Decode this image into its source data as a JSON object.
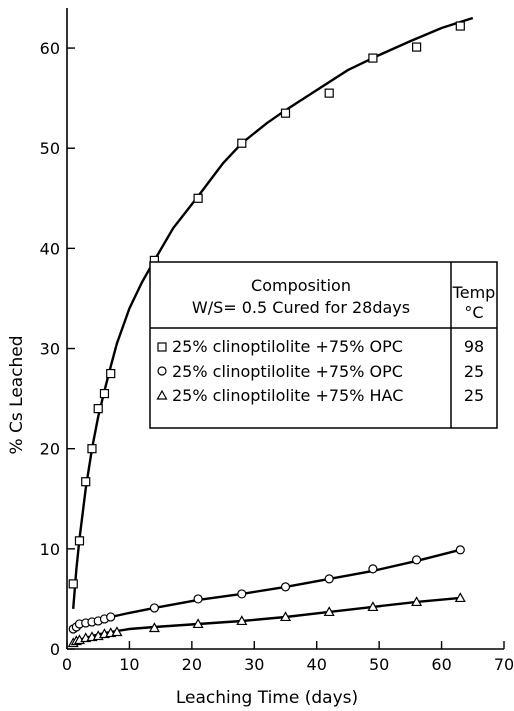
{
  "chart_data": {
    "type": "scatter",
    "xlabel": "Leaching Time (days)",
    "ylabel": "% Cs Leached",
    "xlim": [
      0,
      70
    ],
    "ylim": [
      0,
      64
    ],
    "xticks": [
      0,
      10,
      20,
      30,
      40,
      50,
      60,
      70
    ],
    "yticks": [
      0,
      10,
      20,
      30,
      40,
      50,
      60
    ],
    "x_tick_labels": [
      "0",
      "10",
      "20",
      "30",
      "40",
      "50",
      "60",
      "70"
    ],
    "y_tick_labels": [
      "0",
      "10",
      "20",
      "30",
      "40",
      "50",
      "60"
    ],
    "grid": false,
    "legend": {
      "placement": "center-right",
      "header": {
        "composition_title": "Composition",
        "composition_sub": "W/S= 0.5  Cured for 28days",
        "temp_title": "Temp",
        "temp_unit": "°C"
      },
      "entries": [
        {
          "label": "25% clinoptilolite +75% OPC",
          "temp": "98"
        },
        {
          "label": "25% clinoptilolite +75% OPC",
          "temp": "25"
        },
        {
          "label": "25% clinoptilolite +75% HAC",
          "temp": "25"
        }
      ]
    },
    "series": [
      {
        "marker": "square",
        "x": [
          1,
          2,
          3,
          4,
          5,
          6,
          7,
          14,
          21,
          28,
          35,
          42,
          49,
          56,
          63
        ],
        "y": [
          6.5,
          10.8,
          16.7,
          20,
          24,
          25.5,
          27.5,
          38.8,
          45,
          50.5,
          53.5,
          55.5,
          59,
          60.1,
          62.2
        ],
        "fit_x": [
          1,
          1.5,
          2,
          3,
          4,
          5,
          6,
          7,
          8,
          10,
          12,
          14,
          17,
          21,
          25,
          28,
          32,
          35,
          40,
          45,
          50,
          55,
          60,
          65
        ],
        "fit_y": [
          4,
          8,
          11,
          16,
          20,
          23.2,
          25.8,
          28.2,
          30.5,
          34,
          36.6,
          38.8,
          42,
          45.2,
          48.5,
          50.5,
          52.5,
          53.8,
          55.8,
          57.8,
          59.3,
          60.7,
          62,
          63
        ]
      },
      {
        "marker": "circle",
        "x": [
          1,
          1.5,
          2,
          3,
          4,
          5,
          6,
          7,
          14,
          21,
          28,
          35,
          42,
          49,
          56,
          63
        ],
        "y": [
          2,
          2.2,
          2.5,
          2.6,
          2.7,
          2.8,
          3,
          3.2,
          4.1,
          5,
          5.5,
          6.2,
          7,
          8,
          8.9,
          9.9
        ],
        "fit_x": [
          1,
          2,
          4,
          7,
          10,
          14,
          21,
          28,
          35,
          42,
          49,
          56,
          63
        ],
        "fit_y": [
          1.7,
          2.3,
          2.7,
          3.2,
          3.6,
          4.1,
          4.9,
          5.5,
          6.2,
          7,
          7.8,
          8.8,
          9.9
        ]
      },
      {
        "marker": "triangle",
        "x": [
          1,
          1.5,
          2,
          3,
          4,
          5,
          6,
          7,
          8,
          14,
          21,
          28,
          35,
          42,
          49,
          56,
          63
        ],
        "y": [
          0.6,
          0.8,
          0.9,
          1.1,
          1.2,
          1.3,
          1.5,
          1.6,
          1.7,
          2.1,
          2.5,
          2.8,
          3.2,
          3.7,
          4.2,
          4.7,
          5.1
        ],
        "fit_x": [
          1,
          2,
          4,
          6,
          8,
          10,
          14,
          21,
          28,
          35,
          42,
          49,
          56,
          63
        ],
        "fit_y": [
          0.4,
          0.9,
          1.3,
          1.6,
          1.8,
          2,
          2.2,
          2.5,
          2.8,
          3.2,
          3.7,
          4.2,
          4.7,
          5.1
        ]
      }
    ]
  }
}
